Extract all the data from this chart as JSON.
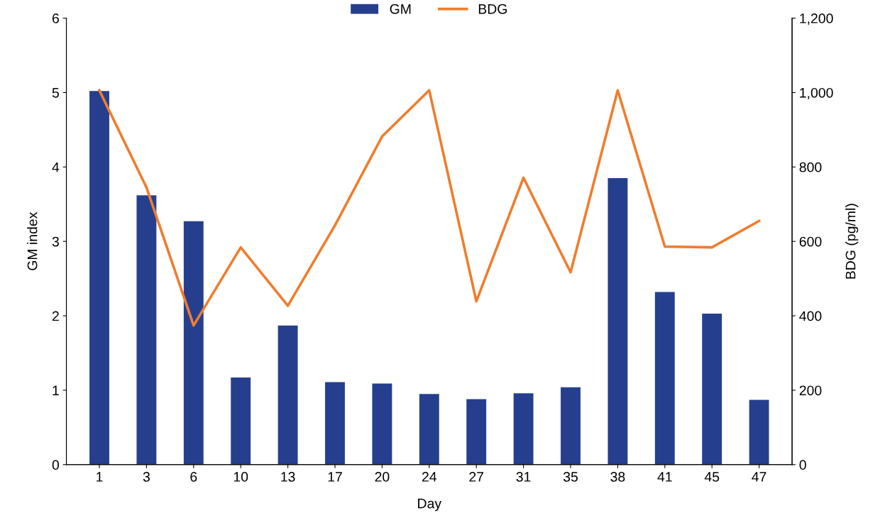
{
  "chart_data": {
    "type": "bar",
    "xlabel": "Day",
    "ylabel": "GM index",
    "y2label": "BDG (pg/ml)",
    "categories": [
      "1",
      "3",
      "6",
      "10",
      "13",
      "17",
      "20",
      "24",
      "27",
      "31",
      "35",
      "38",
      "41",
      "45",
      "47"
    ],
    "series": [
      {
        "name": "GM",
        "color": "#253f8e",
        "values": [
          5.02,
          3.62,
          3.27,
          1.17,
          1.87,
          1.11,
          1.09,
          0.95,
          0.88,
          0.96,
          1.04,
          3.85,
          2.32,
          2.03,
          0.87
        ]
      },
      {
        "name": "BDG",
        "type": "line",
        "axis": "y2",
        "color": "#ef7d2d",
        "values": [
          1006,
          745,
          374,
          584,
          427,
          643,
          882,
          1006,
          439,
          771,
          517,
          1006,
          586,
          584,
          655
        ]
      }
    ],
    "ylim": [
      0,
      6
    ],
    "yticks": [
      0,
      1,
      2,
      3,
      4,
      5,
      6
    ],
    "y2lim": [
      0,
      1200
    ],
    "y2ticks": [
      0,
      {
        "value": 200,
        "label": "200"
      },
      {
        "value": 400,
        "label": "400"
      },
      {
        "value": 600,
        "label": "600"
      },
      {
        "value": 800,
        "label": "800"
      },
      {
        "value": 1000,
        "label": "1,000"
      },
      {
        "value": 1200,
        "label": "1,200"
      }
    ],
    "grid": false,
    "legend": "top",
    "marker": "none",
    "line_style": "solid"
  }
}
